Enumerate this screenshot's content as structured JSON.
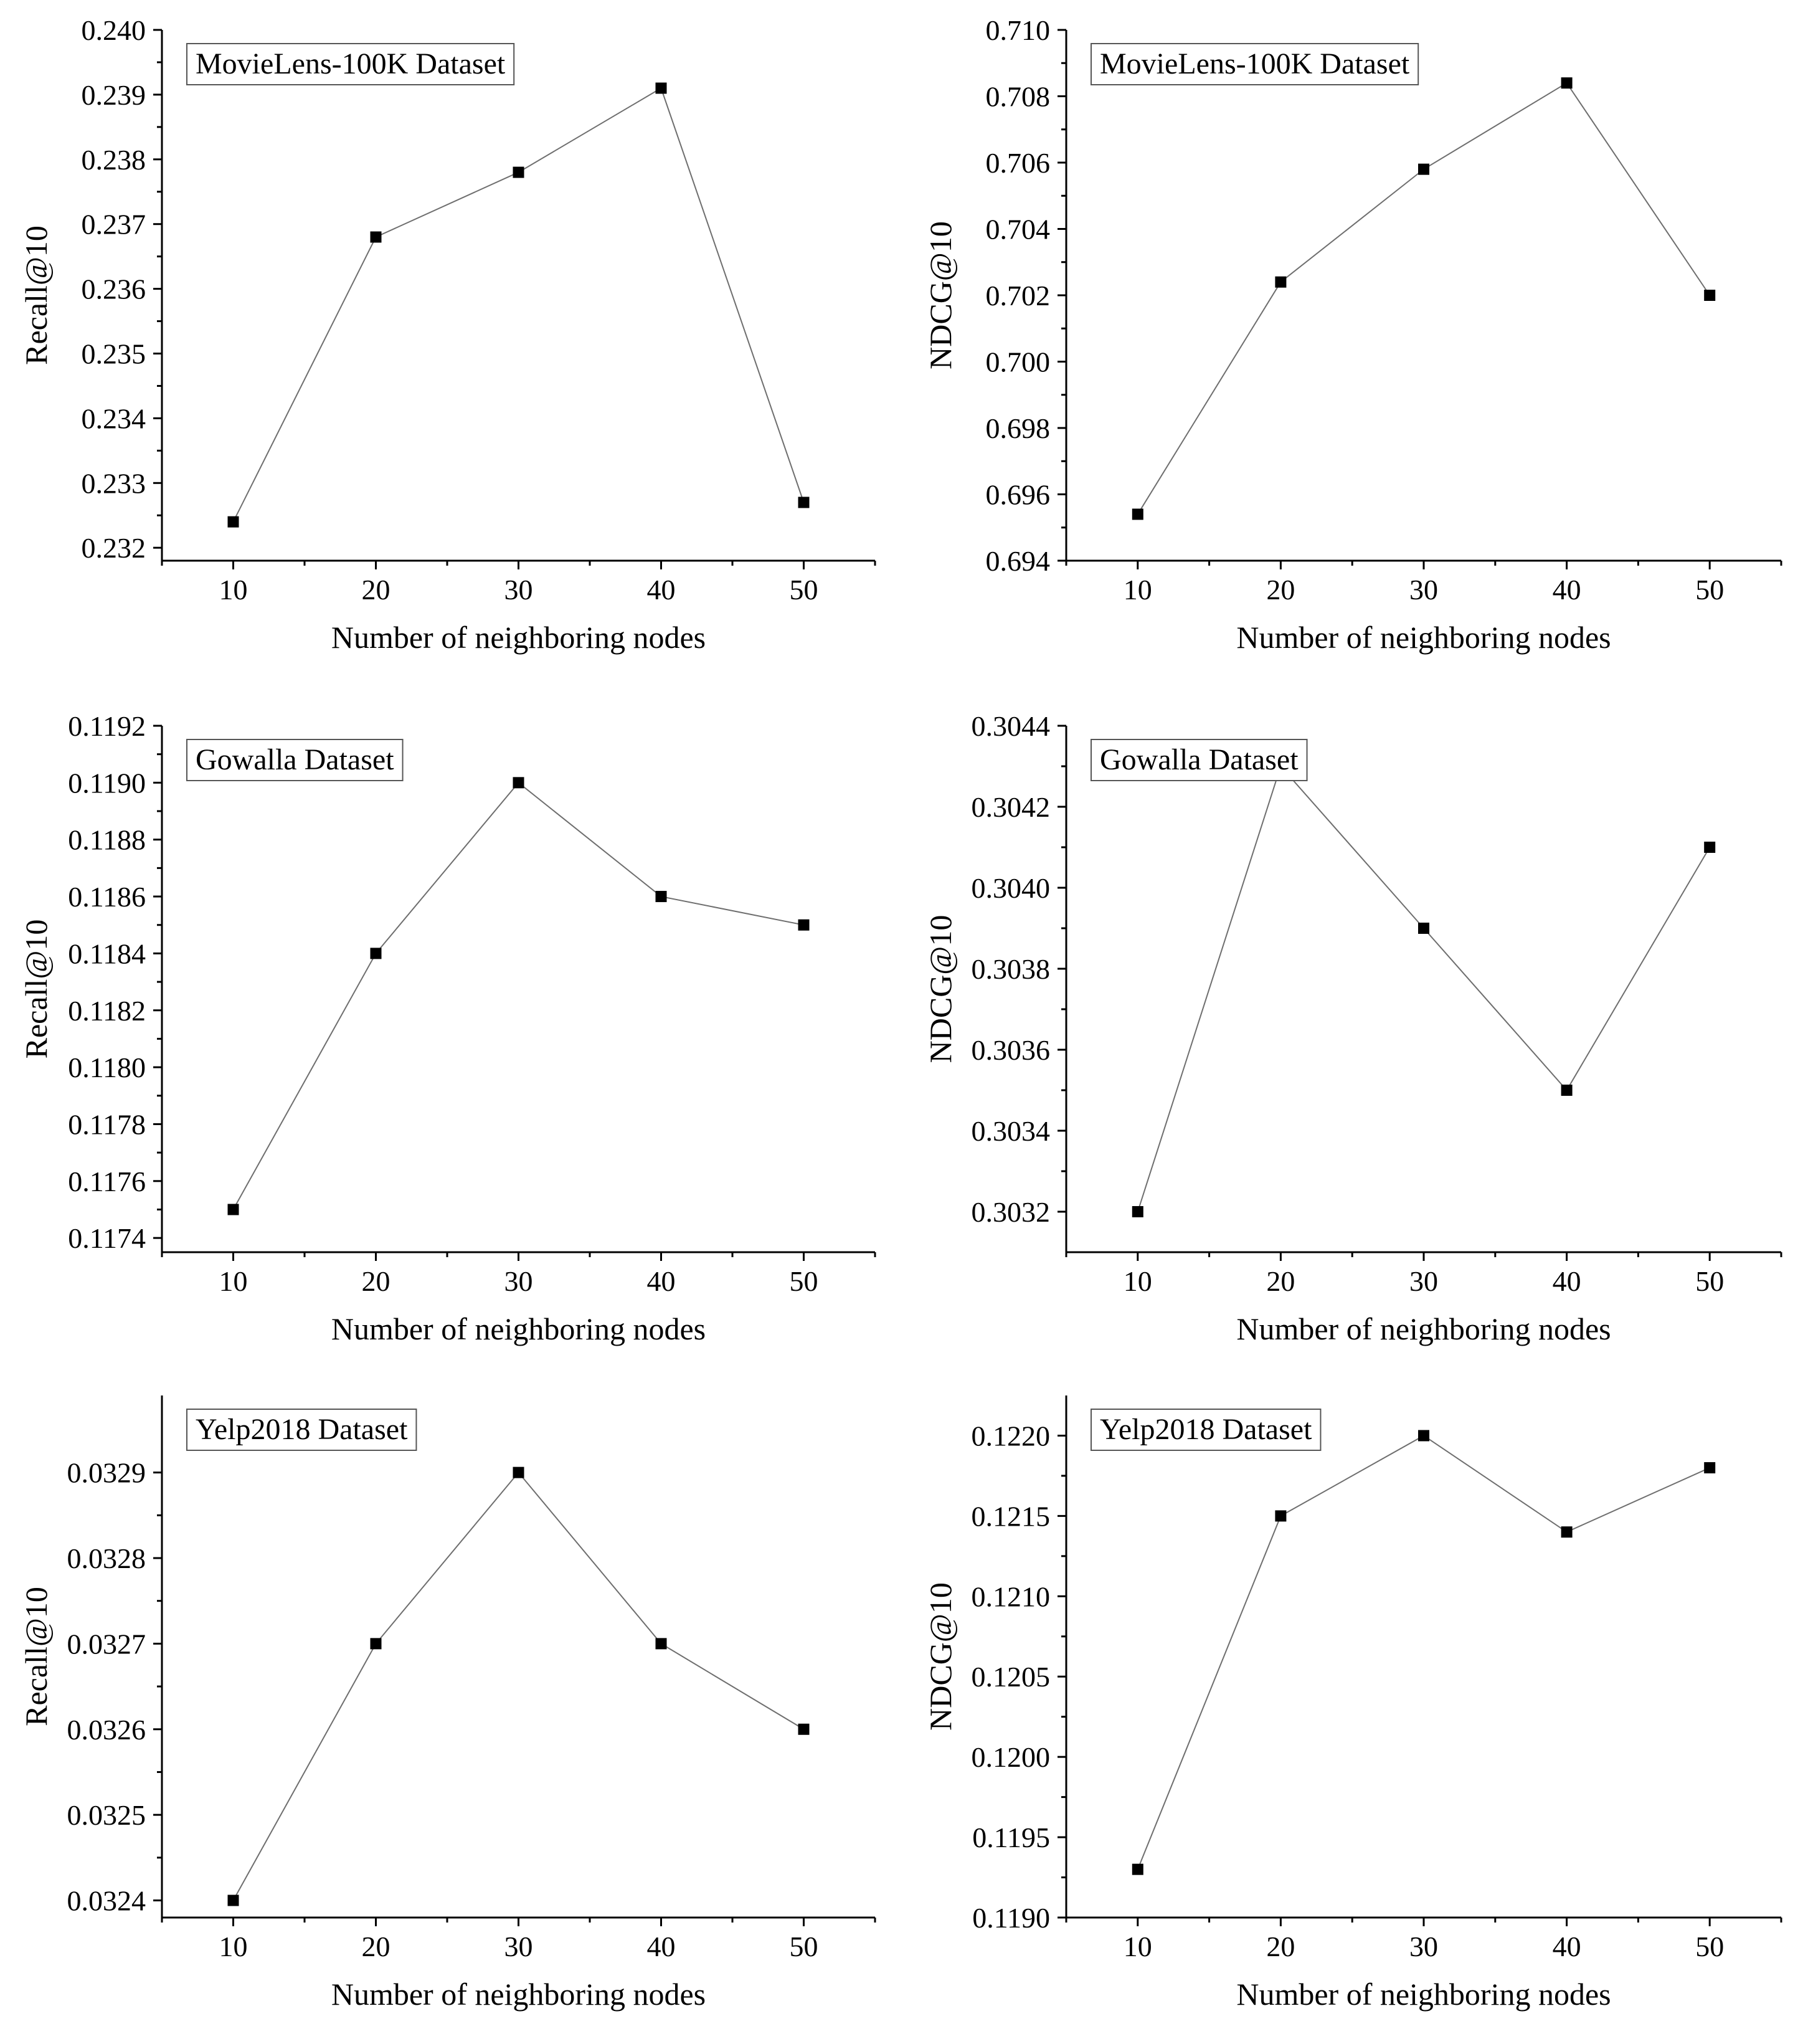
{
  "figure_title": "",
  "chart_data": [
    {
      "type": "line",
      "dataset_label": "MovieLens-100K Dataset",
      "xlabel": "Number of neighboring nodes",
      "ylabel": "Recall@10",
      "x": [
        10,
        20,
        30,
        40,
        50
      ],
      "values": [
        0.2324,
        0.2368,
        0.2378,
        0.2391,
        0.2327
      ],
      "xlim": [
        5,
        55
      ],
      "ylim": [
        0.2318,
        0.24
      ],
      "x_ticks": [
        10,
        20,
        30,
        40,
        50
      ],
      "x_tick_labels": [
        "10",
        "20",
        "30",
        "40",
        "50"
      ],
      "y_ticks": [
        0.232,
        0.233,
        0.234,
        0.235,
        0.236,
        0.237,
        0.238,
        0.239,
        0.24
      ],
      "y_tick_labels": [
        "0.232",
        "0.233",
        "0.234",
        "0.235",
        "0.236",
        "0.237",
        "0.238",
        "0.239",
        "0.240"
      ],
      "legend": "top-left",
      "grid": false
    },
    {
      "type": "line",
      "dataset_label": "MovieLens-100K Dataset",
      "xlabel": "Number of neighboring nodes",
      "ylabel": "NDCG@10",
      "x": [
        10,
        20,
        30,
        40,
        50
      ],
      "values": [
        0.6954,
        0.7024,
        0.7058,
        0.7084,
        0.702
      ],
      "xlim": [
        5,
        55
      ],
      "ylim": [
        0.694,
        0.71
      ],
      "x_ticks": [
        10,
        20,
        30,
        40,
        50
      ],
      "x_tick_labels": [
        "10",
        "20",
        "30",
        "40",
        "50"
      ],
      "y_ticks": [
        0.694,
        0.696,
        0.698,
        0.7,
        0.702,
        0.704,
        0.706,
        0.708,
        0.71
      ],
      "y_tick_labels": [
        "0.694",
        "0.696",
        "0.698",
        "0.700",
        "0.702",
        "0.704",
        "0.706",
        "0.708",
        "0.710"
      ],
      "legend": "top-left",
      "grid": false
    },
    {
      "type": "line",
      "dataset_label": "Gowalla Dataset",
      "xlabel": "Number of neighboring nodes",
      "ylabel": "Recall@10",
      "x": [
        10,
        20,
        30,
        40,
        50
      ],
      "values": [
        0.1175,
        0.1184,
        0.119,
        0.1186,
        0.1185
      ],
      "xlim": [
        5,
        55
      ],
      "ylim": [
        0.11735,
        0.1192
      ],
      "x_ticks": [
        10,
        20,
        30,
        40,
        50
      ],
      "x_tick_labels": [
        "10",
        "20",
        "30",
        "40",
        "50"
      ],
      "y_ticks": [
        0.1174,
        0.1176,
        0.1178,
        0.118,
        0.1182,
        0.1184,
        0.1186,
        0.1188,
        0.119,
        0.1192
      ],
      "y_tick_labels": [
        "0.1174",
        "0.1176",
        "0.1178",
        "0.1180",
        "0.1182",
        "0.1184",
        "0.1186",
        "0.1188",
        "0.1190",
        "0.1192"
      ],
      "legend": "top-left",
      "grid": false
    },
    {
      "type": "line",
      "dataset_label": "Gowalla Dataset",
      "xlabel": "Number of neighboring nodes",
      "ylabel": "NDCG@10",
      "x": [
        10,
        20,
        30,
        40,
        50
      ],
      "values": [
        0.3032,
        0.3043,
        0.3039,
        0.3035,
        0.3041
      ],
      "xlim": [
        5,
        55
      ],
      "ylim": [
        0.3031,
        0.3044
      ],
      "x_ticks": [
        10,
        20,
        30,
        40,
        50
      ],
      "x_tick_labels": [
        "10",
        "20",
        "30",
        "40",
        "50"
      ],
      "y_ticks": [
        0.3032,
        0.3034,
        0.3036,
        0.3038,
        0.304,
        0.3042,
        0.3044
      ],
      "y_tick_labels": [
        "0.3032",
        "0.3034",
        "0.3036",
        "0.3038",
        "0.3040",
        "0.3042",
        "0.3044"
      ],
      "legend": "top-left",
      "grid": false
    },
    {
      "type": "line",
      "dataset_label": "Yelp2018 Dataset",
      "xlabel": "Number of neighboring nodes",
      "ylabel": "Recall@10",
      "x": [
        10,
        20,
        30,
        40,
        50
      ],
      "values": [
        0.0324,
        0.0327,
        0.0329,
        0.0327,
        0.0326
      ],
      "xlim": [
        5,
        55
      ],
      "ylim": [
        0.03238,
        0.03299
      ],
      "x_ticks": [
        10,
        20,
        30,
        40,
        50
      ],
      "x_tick_labels": [
        "10",
        "20",
        "30",
        "40",
        "50"
      ],
      "y_ticks": [
        0.0324,
        0.0325,
        0.0326,
        0.0327,
        0.0328,
        0.0329
      ],
      "y_tick_labels": [
        "0.0324",
        "0.0325",
        "0.0326",
        "0.0327",
        "0.0328",
        "0.0329"
      ],
      "legend": "top-left",
      "grid": false
    },
    {
      "type": "line",
      "dataset_label": "Yelp2018 Dataset",
      "xlabel": "Number of neighboring nodes",
      "ylabel": "NDCG@10",
      "x": [
        10,
        20,
        30,
        40,
        50
      ],
      "values": [
        0.1193,
        0.1215,
        0.122,
        0.1214,
        0.1218
      ],
      "xlim": [
        5,
        55
      ],
      "ylim": [
        0.119,
        0.12225
      ],
      "x_ticks": [
        10,
        20,
        30,
        40,
        50
      ],
      "x_tick_labels": [
        "10",
        "20",
        "30",
        "40",
        "50"
      ],
      "y_ticks": [
        0.119,
        0.1195,
        0.12,
        0.1205,
        0.121,
        0.1215,
        0.122
      ],
      "y_tick_labels": [
        "0.1190",
        "0.1195",
        "0.1200",
        "0.1205",
        "0.1210",
        "0.1215",
        "0.1220"
      ],
      "legend": "top-left",
      "grid": false
    }
  ]
}
